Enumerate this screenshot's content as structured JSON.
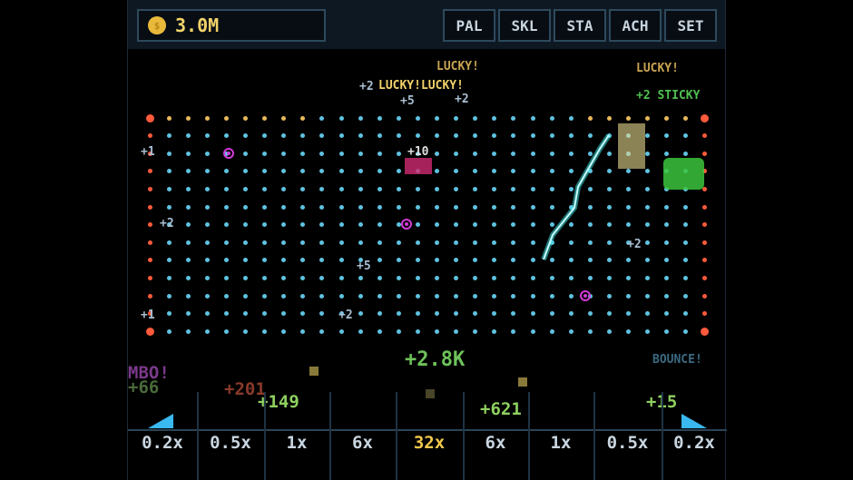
{
  "header": {
    "coin_icon": "dollar-coin-icon",
    "coin_symbol": "$",
    "balance": "3.0M",
    "buttons": [
      {
        "label": "PAL"
      },
      {
        "label": "SKL"
      },
      {
        "label": "STA"
      },
      {
        "label": "ACH"
      },
      {
        "label": "SET"
      }
    ]
  },
  "board": {
    "peg_rows": 13,
    "peg_cols": 30,
    "colors": {
      "peg": "#5fc2e0",
      "top_peg": "#e8b95a",
      "edge_peg": "#ff5a3c",
      "ring": "#d23ad8",
      "laser": "#3ff0f0"
    }
  },
  "floating_text": [
    {
      "text": "LUCKY!",
      "color": "#c9a552"
    },
    {
      "text": "+2",
      "color": "#a9bfd2"
    },
    {
      "text": "LUCKY!LUCKY!",
      "color": "#f2d36a"
    },
    {
      "text": "LUCKY!",
      "color": "#c9a552"
    },
    {
      "text": "+2 STICKY",
      "color": "#4fc04f"
    },
    {
      "text": "+2.8K",
      "color": "#6ec25a"
    },
    {
      "text": "BOUNCE!",
      "color": "#3a6a82"
    },
    {
      "text": "MBO!",
      "color": "#7a3a8a"
    },
    {
      "text": "+66",
      "color": "#4a6a3a"
    },
    {
      "text": "+201",
      "color": "#8a3a2a"
    },
    {
      "text": "+149",
      "color": "#8ed060"
    },
    {
      "text": "+621",
      "color": "#8ed060"
    },
    {
      "text": "+15",
      "color": "#8ed060"
    },
    {
      "text": "+5",
      "color": "#a9bfd2"
    },
    {
      "text": "+2",
      "color": "#a9bfd2"
    },
    {
      "text": "+10",
      "color": "#e0e0e0"
    },
    {
      "text": "+2",
      "color": "#a9bfd2"
    },
    {
      "text": "+1",
      "color": "#a9bfd2"
    },
    {
      "text": "+1",
      "color": "#a9bfd2"
    },
    {
      "text": "+2",
      "color": "#a9bfd2"
    },
    {
      "text": "+5",
      "color": "#a9bfd2"
    },
    {
      "text": "+2",
      "color": "#a9bfd2"
    }
  ],
  "slots": [
    {
      "label": "0.2x",
      "highlight": false
    },
    {
      "label": "0.5x",
      "highlight": false
    },
    {
      "label": "1x",
      "highlight": false
    },
    {
      "label": "6x",
      "highlight": false
    },
    {
      "label": "32x",
      "highlight": true
    },
    {
      "label": "6x",
      "highlight": false
    },
    {
      "label": "1x",
      "highlight": false
    },
    {
      "label": "0.5x",
      "highlight": false
    },
    {
      "label": "0.2x",
      "highlight": false
    }
  ],
  "slot_colors": {
    "normal": "#c9d6e0",
    "highlight": "#f2c94c",
    "bumper": "#3ab8f0"
  }
}
